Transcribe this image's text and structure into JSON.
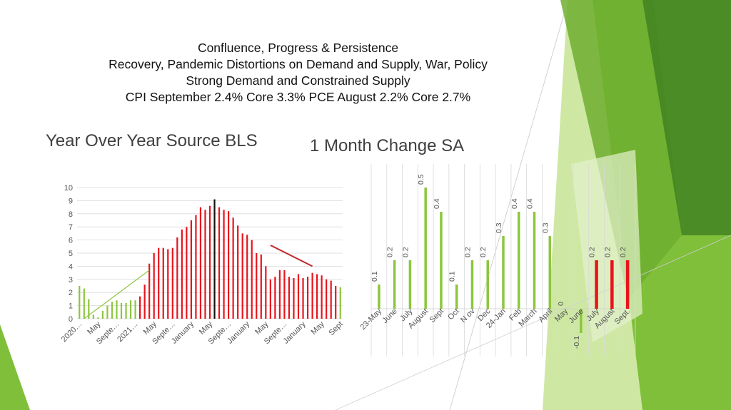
{
  "slide": {
    "title_lines": [
      "Confluence, Progress & Persistence",
      "Recovery, Pandemic Distortions on Demand and Supply, War, Policy",
      "Strong Demand and Constrained Supply",
      "CPI September 2.4% Core 3.3%   PCE August 2.2%   Core 2.7%"
    ],
    "left_heading": "Year Over Year Source BLS",
    "right_heading": "1 Month Change  SA"
  },
  "colors": {
    "green": "#8cc63f",
    "red": "#e8141c",
    "dark_red": "#c0282d",
    "black": "#111111",
    "grid": "#d9d9d9",
    "deco_light": "#a6d65a",
    "deco_mid": "#6fae30",
    "deco_dark": "#3f7f22"
  },
  "chart_data": [
    {
      "type": "bar",
      "title": "",
      "xlabel": "",
      "ylabel": "",
      "ylim": [
        0,
        10
      ],
      "yticks": [
        0,
        1,
        2,
        3,
        4,
        5,
        6,
        7,
        8,
        9,
        10
      ],
      "grid": true,
      "x_tick_labels": [
        "2020…",
        "May",
        "Septe…",
        "2021…",
        "May",
        "Septe…",
        "January",
        "May",
        "Septe…",
        "January",
        "May",
        "Septe…",
        "January",
        "May",
        "Sept"
      ],
      "x_tick_positions": [
        0,
        4,
        8,
        12,
        16,
        20,
        24,
        28,
        32,
        36,
        40,
        44,
        48,
        52,
        56
      ],
      "values": [
        2.5,
        2.3,
        1.5,
        0.3,
        0.1,
        0.6,
        1.0,
        1.3,
        1.4,
        1.2,
        1.2,
        1.4,
        1.4,
        1.7,
        2.6,
        4.2,
        5.0,
        5.4,
        5.4,
        5.3,
        5.4,
        6.2,
        6.8,
        7.0,
        7.5,
        7.9,
        8.5,
        8.3,
        8.6,
        9.1,
        8.5,
        8.3,
        8.2,
        7.7,
        7.1,
        6.5,
        6.4,
        6.0,
        5.0,
        4.9,
        4.0,
        3.0,
        3.2,
        3.7,
        3.7,
        3.2,
        3.1,
        3.4,
        3.1,
        3.2,
        3.5,
        3.4,
        3.3,
        3.0,
        2.9,
        2.5,
        2.4
      ],
      "bar_colors": [
        "green",
        "green",
        "green",
        "green",
        "green",
        "green",
        "green",
        "green",
        "green",
        "green",
        "green",
        "green",
        "green",
        "red",
        "red",
        "red",
        "red",
        "red",
        "red",
        "red",
        "red",
        "red",
        "red",
        "red",
        "red",
        "red",
        "red",
        "red",
        "red",
        "black",
        "red",
        "red",
        "red",
        "red",
        "red",
        "red",
        "red",
        "red",
        "red",
        "red",
        "red",
        "red",
        "red",
        "red",
        "red",
        "red",
        "red",
        "red",
        "red",
        "red",
        "red",
        "red",
        "red",
        "red",
        "red",
        "red",
        "green"
      ],
      "trend_lines": [
        {
          "color": "green",
          "from": [
            1,
            0.0
          ],
          "to": [
            15,
            3.7
          ]
        },
        {
          "color": "dark_red",
          "from": [
            41,
            5.6
          ],
          "to": [
            50,
            4.0
          ]
        }
      ]
    },
    {
      "type": "bar",
      "title": "",
      "xlabel": "",
      "ylabel": "",
      "ylim": [
        -0.1,
        0.5
      ],
      "grid": false,
      "categories": [
        "23-May",
        "June",
        "July",
        "August",
        "Sept",
        "Oct",
        "N ov",
        "Dec",
        "24-Jan",
        "Feb",
        "March",
        "April",
        "May",
        "June",
        "July",
        "August",
        "Sept."
      ],
      "values": [
        0.1,
        0.2,
        0.2,
        0.5,
        0.4,
        0.1,
        0.2,
        0.2,
        0.3,
        0.4,
        0.4,
        0.3,
        0,
        -0.1,
        0.2,
        0.2,
        0.2
      ],
      "data_labels": [
        "0.1",
        "0.2",
        "0.2",
        "0.5",
        "0.4",
        "0.1",
        "0.2",
        "0.2",
        "0.3",
        "0.4",
        "0.4",
        "0.3",
        "0",
        "-0.1",
        "0.2",
        "0.2",
        "0.2"
      ],
      "bar_colors": [
        "green",
        "green",
        "green",
        "green",
        "green",
        "green",
        "green",
        "green",
        "green",
        "green",
        "green",
        "green",
        "green",
        "green",
        "red",
        "red",
        "red"
      ]
    }
  ]
}
